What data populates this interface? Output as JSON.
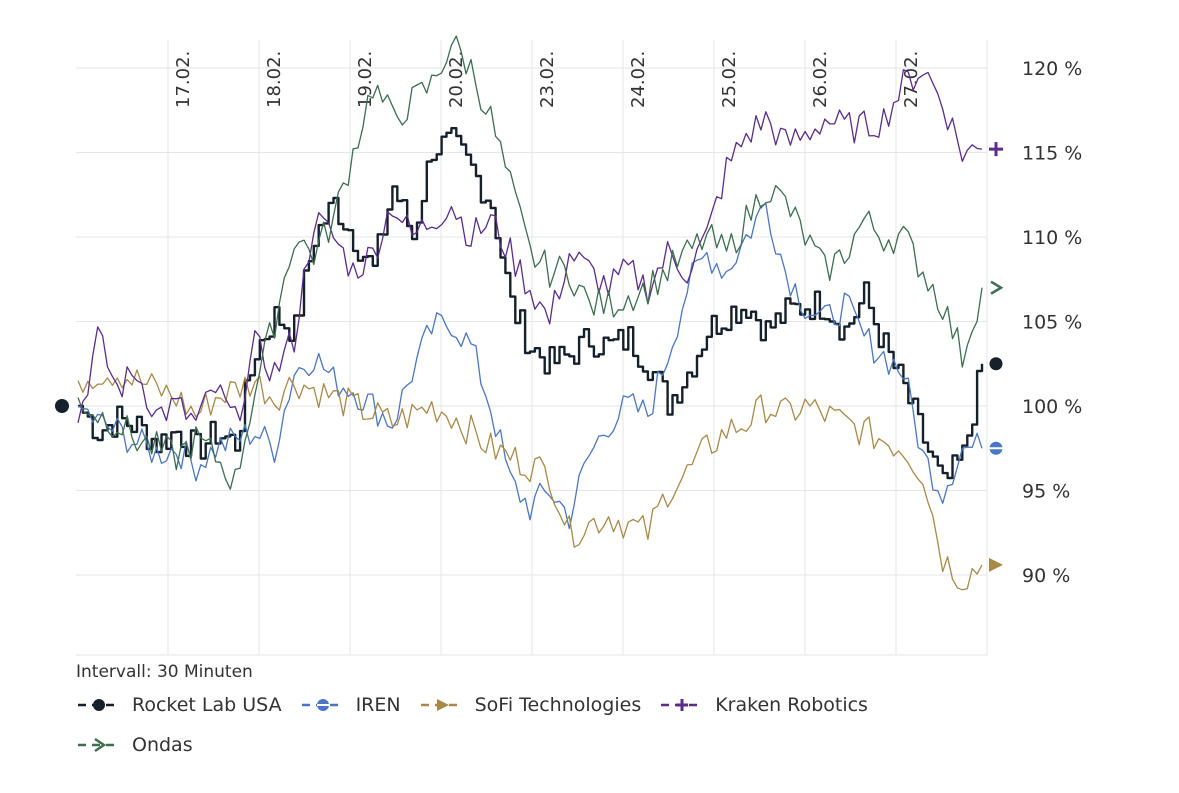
{
  "chart_data": {
    "type": "line",
    "interval_label": "Intervall: 30 Minuten",
    "x_labels": [
      "17.02.",
      "18.02.",
      "19.02.",
      "20.02.",
      "23.02.",
      "24.02.",
      "25.02.",
      "26.02.",
      "27.02."
    ],
    "y_ticks": [
      {
        "value": 90,
        "label": "90 %"
      },
      {
        "value": 95,
        "label": "95 %"
      },
      {
        "value": 100,
        "label": "100 %"
      },
      {
        "value": 105,
        "label": "105 %"
      },
      {
        "value": 110,
        "label": "110 %"
      },
      {
        "value": 115,
        "label": "115 %"
      },
      {
        "value": 120,
        "label": "120 %"
      }
    ],
    "ylim": [
      88.2,
      122.6
    ],
    "grid": true,
    "legend_position": "bottom",
    "series": [
      {
        "name": "Rocket Lab USA",
        "color": "#16202a",
        "marker": "circle",
        "stroke_width": 2.4,
        "values": [
          100,
          98.5,
          99.2,
          98.8,
          97.8,
          98.5,
          97.4,
          98.4,
          97.8,
          103.3,
          105.3,
          104.5,
          110,
          112,
          110,
          108,
          113,
          110,
          115.3,
          115.5,
          114,
          112,
          106,
          103.5,
          102.5,
          103,
          104,
          103.5,
          104,
          102.5,
          100.2,
          102,
          104.5,
          105.5,
          106,
          104.5,
          105.5,
          106,
          106,
          104.5,
          106.5,
          103.5,
          101,
          98,
          95.2,
          97,
          102.5
        ]
      },
      {
        "name": "IREN",
        "color": "#4a76c3",
        "marker": "circle-line",
        "stroke_width": 1.3,
        "values": [
          100,
          99,
          98.5,
          97.8,
          97.2,
          97.5,
          96.5,
          97.5,
          98,
          98.5,
          97.5,
          102,
          103,
          101.5,
          101,
          100,
          99,
          102,
          104.5,
          105,
          103.5,
          100,
          95.5,
          94,
          95,
          93.5,
          97,
          99,
          100,
          99.5,
          103,
          107,
          109,
          108,
          110,
          112,
          108,
          106,
          105,
          106,
          104,
          103,
          102,
          97,
          95,
          97.5,
          97.5
        ]
      },
      {
        "name": "SoFi Technologies",
        "color": "#a9894a",
        "marker": "triangle",
        "stroke_width": 1.3,
        "values": [
          101.5,
          102,
          102,
          101.5,
          101,
          100.5,
          99.5,
          100.5,
          101,
          101.5,
          100.5,
          101.5,
          101,
          100.5,
          100,
          99.5,
          99,
          99.5,
          100,
          99.5,
          98.5,
          97.5,
          97,
          96.5,
          96,
          92.5,
          93,
          93.5,
          93,
          92.5,
          95,
          96,
          97.5,
          98.5,
          99,
          100,
          99.5,
          100,
          99.5,
          99,
          98.5,
          98,
          97.5,
          96,
          91,
          89.8,
          90.6
        ]
      },
      {
        "name": "Kraken Robotics",
        "color": "#5a2c8e",
        "marker": "plus",
        "stroke_width": 1.3,
        "values": [
          99,
          104,
          101,
          102,
          99.5,
          100,
          99,
          101,
          99,
          103.5,
          102,
          104,
          111,
          110,
          108,
          109,
          112,
          110,
          111,
          112,
          110,
          111,
          109,
          107,
          105,
          109,
          108,
          107,
          108,
          107,
          109,
          108,
          110,
          114,
          116,
          117,
          115.5,
          116,
          117,
          116.5,
          116.5,
          117,
          119,
          120,
          118,
          115,
          115.2
        ]
      },
      {
        "name": "Ondas",
        "color": "#3c6e4f",
        "marker": "chevron",
        "stroke_width": 1.3,
        "values": [
          100.5,
          99.5,
          99,
          98,
          97.5,
          97,
          98,
          97,
          95.5,
          101,
          105,
          110,
          109,
          111,
          115,
          119,
          117,
          118,
          119,
          121.5,
          120,
          117,
          113,
          109,
          108,
          108,
          106,
          106,
          106.5,
          107,
          108,
          109,
          110,
          109,
          111,
          113,
          112,
          110,
          108,
          109,
          111,
          110,
          110,
          108,
          106,
          103,
          107
        ]
      }
    ]
  }
}
